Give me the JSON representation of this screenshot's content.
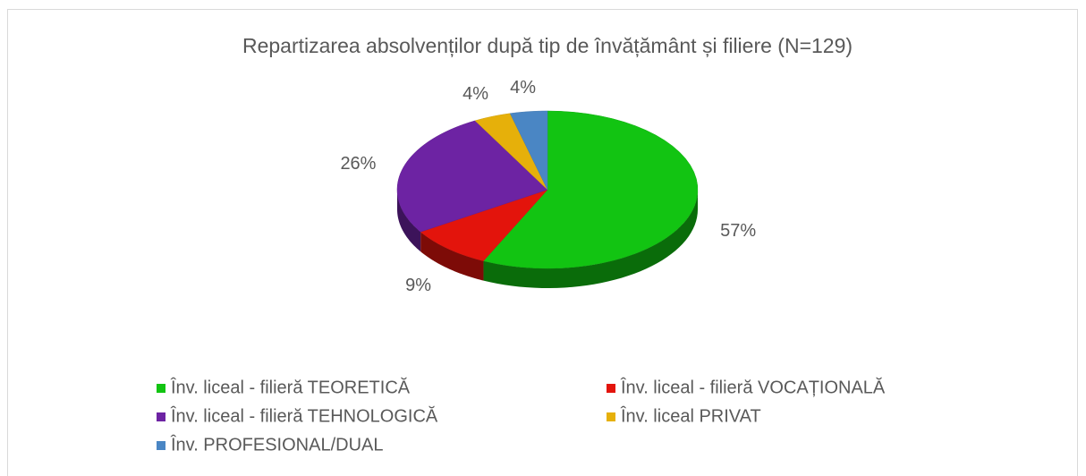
{
  "chart_data": {
    "type": "pie",
    "title": "Repartizarea absolvenților după tip de învățământ și filiere (N=129)",
    "categories": [
      "Înv. liceal - filieră TEORETICĂ",
      "Înv. liceal - filieră VOCAȚIONALĂ",
      "Înv. liceal - filieră TEHNOLOGICĂ",
      "Înv. liceal PRIVAT",
      "Înv. PROFESIONAL/DUAL"
    ],
    "values": [
      57,
      9,
      26,
      4,
      4
    ],
    "value_labels": [
      "57%",
      "9%",
      "26%",
      "4%",
      "4%"
    ],
    "colors": [
      "#12c412",
      "#e3140c",
      "#6d23a3",
      "#e6b00a",
      "#4a86c4"
    ],
    "legend": "bottom"
  }
}
